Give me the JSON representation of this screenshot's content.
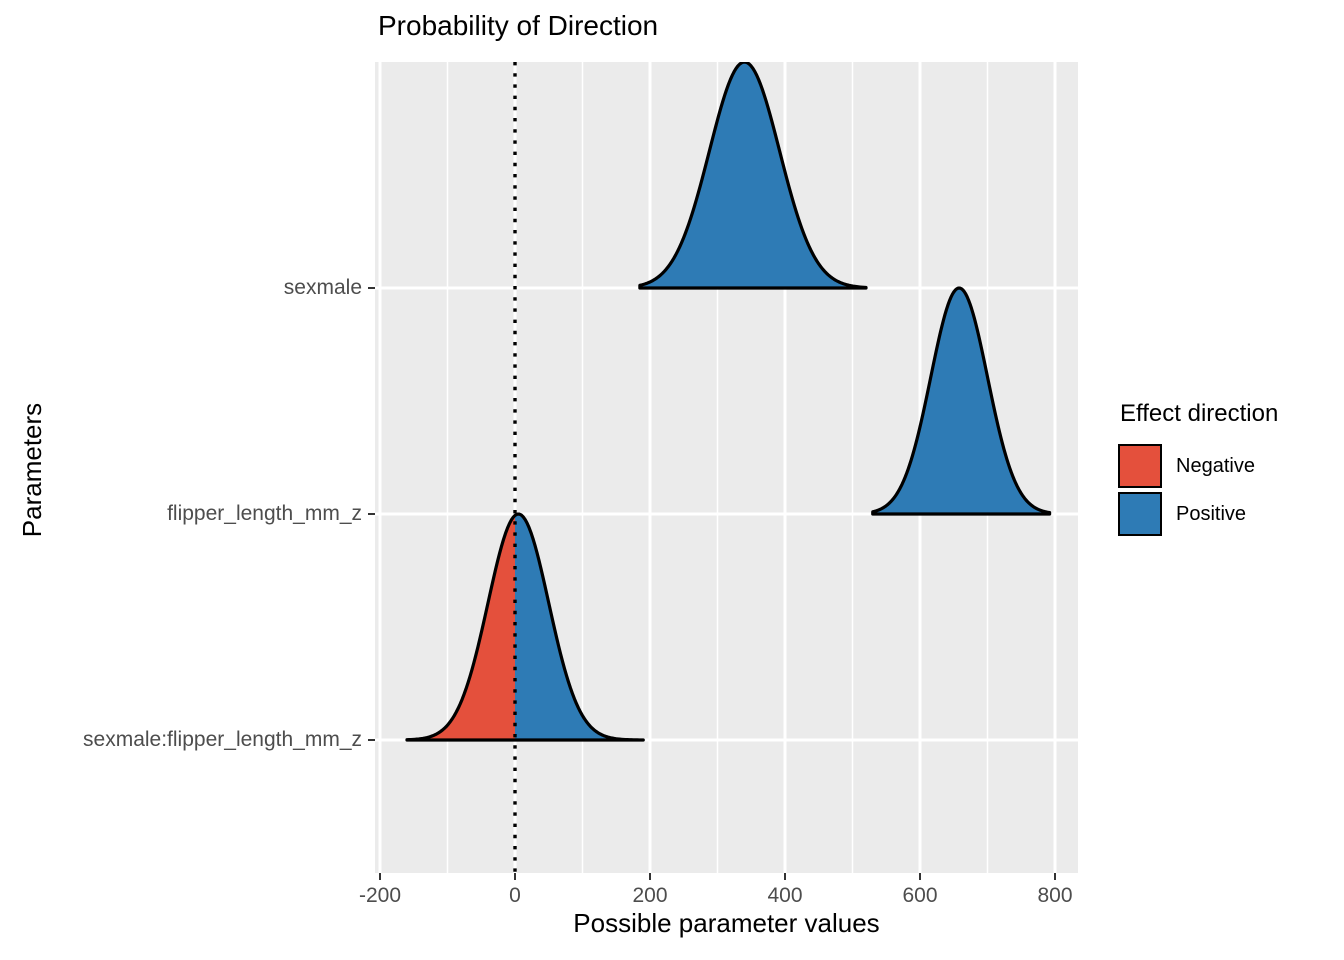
{
  "chart_data": {
    "type": "ridgeline-density",
    "title": "Probability of Direction",
    "xlabel": "Possible parameter values",
    "ylabel": "Parameters",
    "x_ticks": [
      -200,
      0,
      200,
      400,
      600,
      800
    ],
    "x_minor_ticks": [
      -100,
      100,
      300,
      500,
      700
    ],
    "x_range": [
      -207,
      833
    ],
    "categories": [
      "sexmale",
      "flipper_length_mm_z",
      "sexmale:flipper_length_mm_z"
    ],
    "reference_line": 0,
    "densities": [
      {
        "parameter": "sexmale",
        "row": 0,
        "mean": 340,
        "sd": 52,
        "min": 185,
        "max": 520,
        "direction": "positive"
      },
      {
        "parameter": "flipper_length_mm_z",
        "row": 1,
        "mean": 658,
        "sd": 42,
        "min": 530,
        "max": 792,
        "direction": "positive"
      },
      {
        "parameter": "sexmale:flipper_length_mm_z",
        "row": 2,
        "mean": 5,
        "sd": 45,
        "min": -160,
        "max": 190,
        "direction": "split"
      }
    ],
    "legend": {
      "title": "Effect direction",
      "items": [
        {
          "label": "Negative",
          "color": "#E4503C"
        },
        {
          "label": "Positive",
          "color": "#2E7BB5"
        }
      ]
    },
    "colors": {
      "negative": "#E4503C",
      "positive": "#2E7BB5",
      "panel_bg": "#EBEBEB",
      "grid": "#FFFFFF",
      "outline": "#000000",
      "axis_text": "#4D4D4D"
    },
    "layout_hints": {
      "grid": "on",
      "legend_position": "right"
    }
  }
}
